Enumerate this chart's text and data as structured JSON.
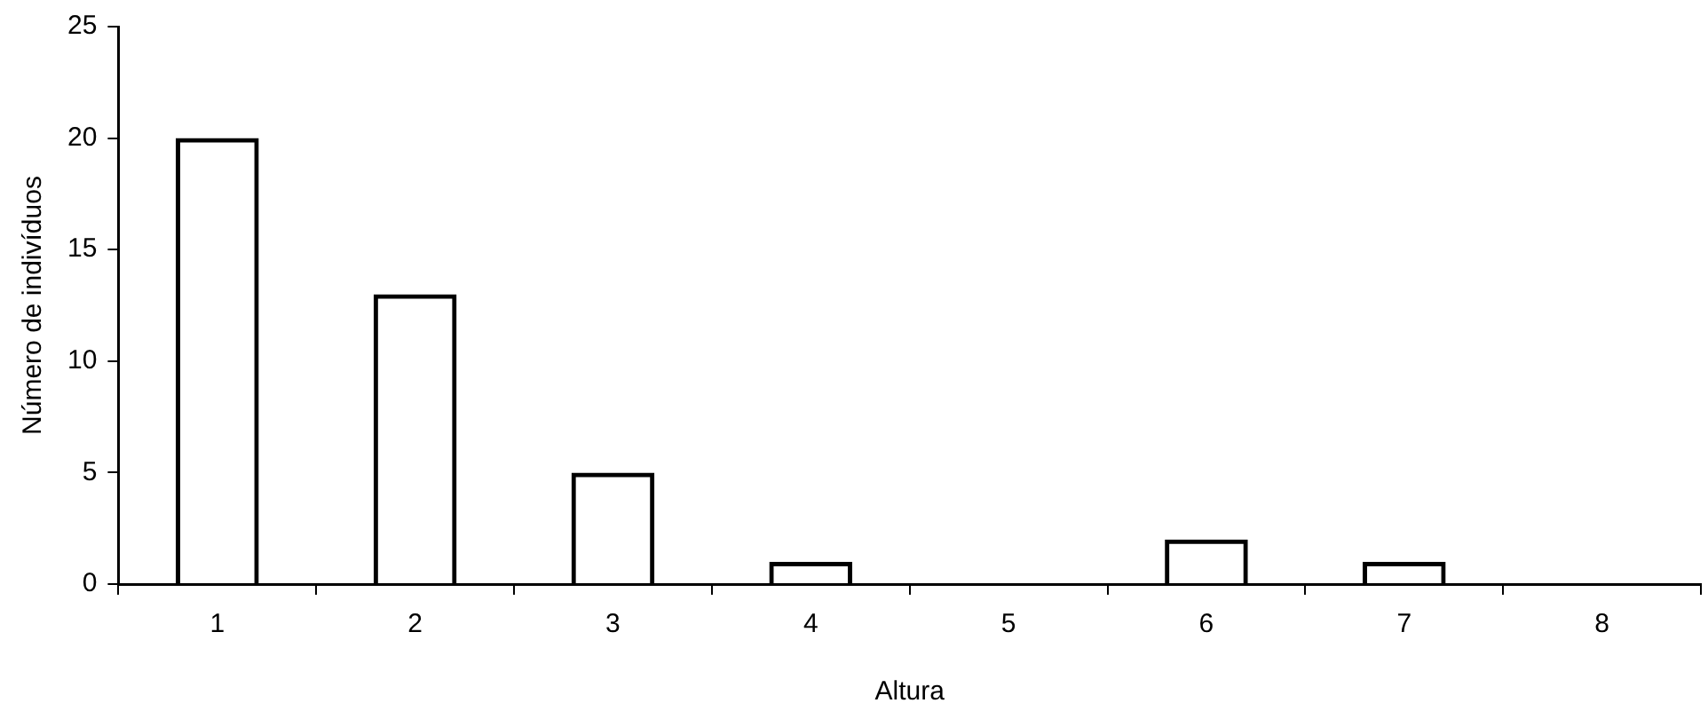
{
  "chart_data": {
    "type": "bar",
    "xlabel": "Altura",
    "ylabel": "Número de indivíduos",
    "categories": [
      "1",
      "2",
      "3",
      "4",
      "5",
      "6",
      "7",
      "8"
    ],
    "values": [
      20,
      13,
      5,
      1,
      0,
      2,
      1,
      0
    ],
    "color": "#000000",
    "ylim": [
      0,
      25
    ],
    "yticks": [
      0,
      5,
      10,
      15,
      20,
      25
    ],
    "grid": false,
    "legend": false
  }
}
